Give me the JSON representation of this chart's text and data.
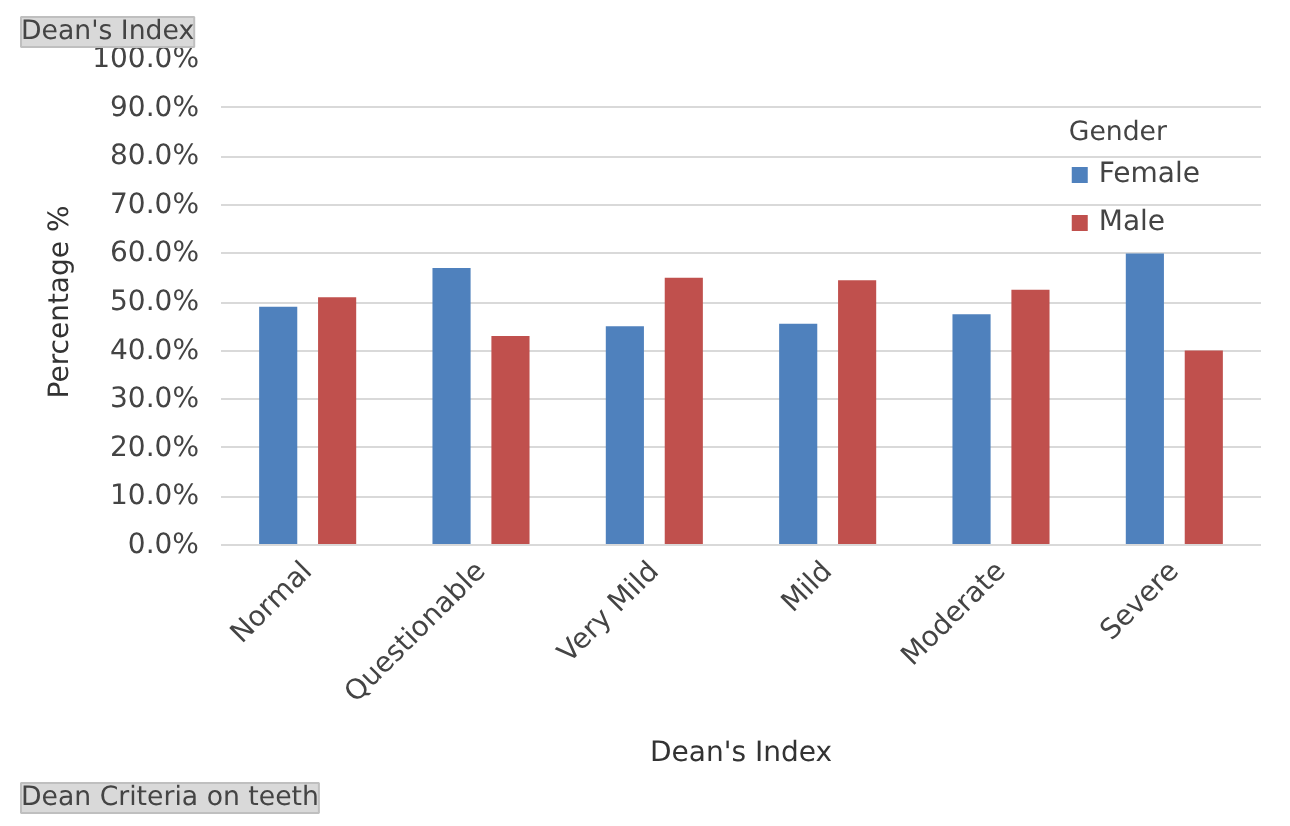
{
  "chart_data": {
    "type": "bar",
    "xlabel": "Dean's Index",
    "ylabel": "Percentage %",
    "legend_title": "Gender",
    "legend": "top right",
    "grid": "y",
    "annotations": [
      "Dean's Index",
      "Dean Criteria on teeth"
    ],
    "categories": [
      "Normal",
      "Questionable",
      "Very Mild",
      "Mild",
      "Moderate",
      "Severe"
    ],
    "series": [
      {
        "name": "Female",
        "color": "#4f81bd",
        "values": [
          49,
          57,
          45,
          45.5,
          47.5,
          60
        ]
      },
      {
        "name": "Male",
        "color": "#c0504d",
        "values": [
          51,
          43,
          55,
          54.5,
          52.5,
          40
        ]
      }
    ],
    "ylim": [
      0,
      100
    ],
    "yticks": [
      {
        "value": 0,
        "label": "0.0%"
      },
      {
        "value": 10,
        "label": "10.0%"
      },
      {
        "value": 20,
        "label": "20.0%"
      },
      {
        "value": 30,
        "label": "30.0%"
      },
      {
        "value": 40,
        "label": "40.0%"
      },
      {
        "value": 50,
        "label": "50.0%"
      },
      {
        "value": 60,
        "label": "60.0%"
      },
      {
        "value": 70,
        "label": "70.0%"
      },
      {
        "value": 80,
        "label": "80.0%"
      },
      {
        "value": 90,
        "label": "90.0%"
      },
      {
        "value": 100,
        "label": "100.0%"
      }
    ]
  }
}
